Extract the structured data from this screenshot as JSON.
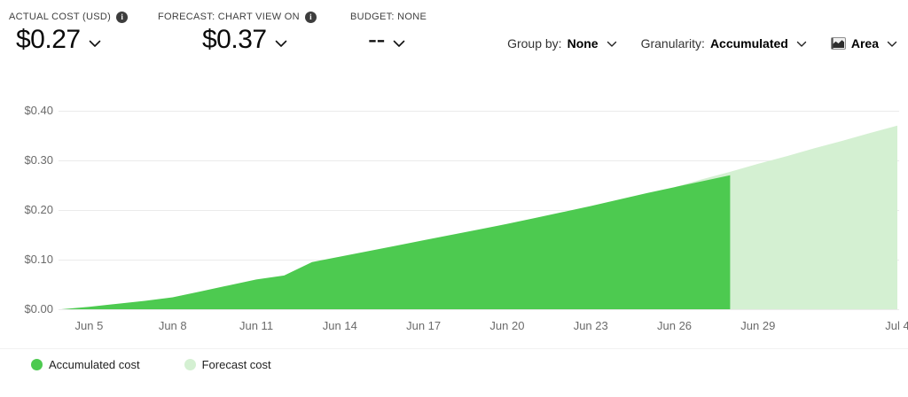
{
  "header": {
    "metrics": [
      {
        "label": "ACTUAL COST (USD)",
        "value": "$0.27",
        "has_info": true
      },
      {
        "label": "FORECAST: CHART VIEW ON",
        "value": "$0.37",
        "has_info": true
      },
      {
        "label": "BUDGET: NONE",
        "value": "--",
        "has_info": false
      }
    ],
    "controls": {
      "group_by_label": "Group by:",
      "group_by_value": "None",
      "granularity_label": "Granularity:",
      "granularity_value": "Accumulated",
      "chart_type_value": "Area",
      "chart_type_icon": "area-chart-icon"
    }
  },
  "chart_data": {
    "type": "area",
    "currency": "USD",
    "ylim": [
      0,
      0.4
    ],
    "grid": true,
    "y_ticks": [
      {
        "v": 0.0,
        "label": "$0.00"
      },
      {
        "v": 0.1,
        "label": "$0.10"
      },
      {
        "v": 0.2,
        "label": "$0.20"
      },
      {
        "v": 0.3,
        "label": "$0.30"
      },
      {
        "v": 0.4,
        "label": "$0.40"
      }
    ],
    "x_ticks": [
      {
        "day": 1,
        "label": "Jun 5"
      },
      {
        "day": 4,
        "label": "Jun 8"
      },
      {
        "day": 7,
        "label": "Jun 11"
      },
      {
        "day": 10,
        "label": "Jun 14"
      },
      {
        "day": 13,
        "label": "Jun 17"
      },
      {
        "day": 16,
        "label": "Jun 20"
      },
      {
        "day": 19,
        "label": "Jun 23"
      },
      {
        "day": 22,
        "label": "Jun 26"
      },
      {
        "day": 25,
        "label": "Jun 29"
      },
      {
        "day": 30,
        "label": "Jul 4"
      }
    ],
    "series": [
      {
        "name": "Accumulated cost",
        "color": "#4dca50",
        "days": [
          0,
          1,
          2,
          3,
          4,
          5,
          6,
          7,
          8,
          9,
          10,
          11,
          12,
          13,
          14,
          15,
          16,
          17,
          18,
          19,
          20,
          21,
          22,
          23,
          24
        ],
        "values": [
          0.0,
          0.005,
          0.011,
          0.017,
          0.024,
          0.036,
          0.048,
          0.06,
          0.068,
          0.095,
          0.106,
          0.117,
          0.128,
          0.139,
          0.15,
          0.161,
          0.172,
          0.184,
          0.196,
          0.208,
          0.221,
          0.234,
          0.246,
          0.258,
          0.27
        ]
      },
      {
        "name": "Forecast cost",
        "color": "#d4f0d2",
        "days": [
          22,
          23,
          24,
          25,
          26,
          27,
          28,
          29,
          30
        ],
        "values": [
          0.246,
          0.262,
          0.277,
          0.293,
          0.308,
          0.324,
          0.339,
          0.355,
          0.37
        ]
      }
    ]
  },
  "legend": [
    {
      "label": "Accumulated cost",
      "color": "#4dca50"
    },
    {
      "label": "Forecast cost",
      "color": "#d4f0d2"
    }
  ]
}
